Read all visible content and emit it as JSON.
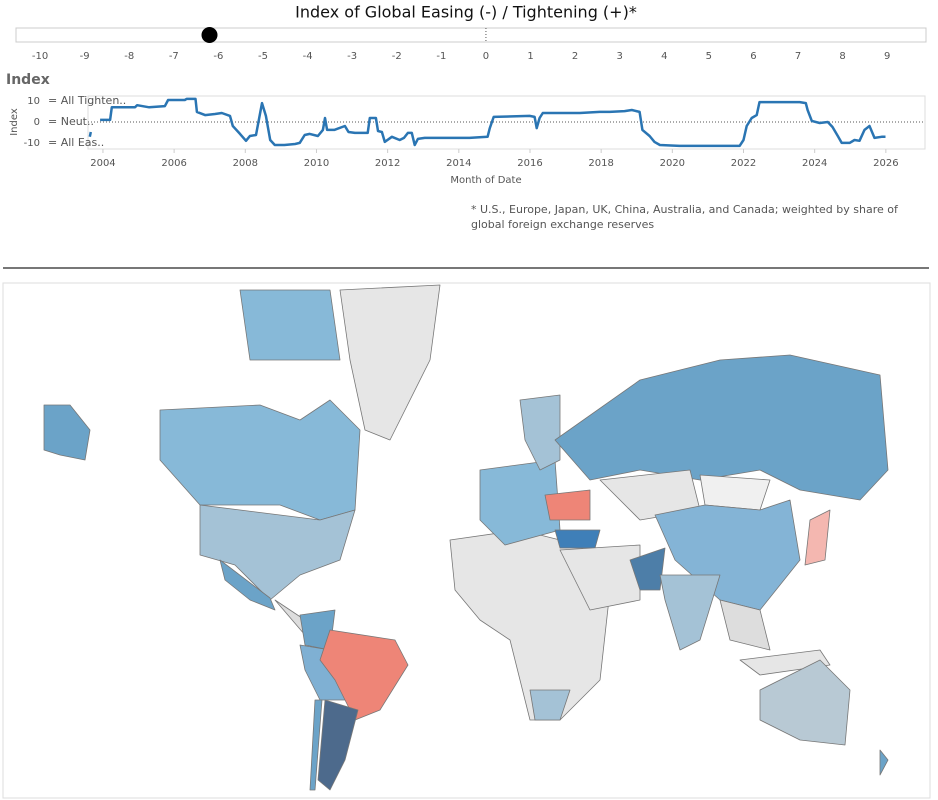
{
  "slider": {
    "title": "Index of Global Easing (-) / Tightening (+)*",
    "ticks": [
      -10,
      -9,
      -8,
      -7,
      -6,
      -5,
      -4,
      -3,
      -2,
      -1,
      0,
      1,
      2,
      3,
      4,
      5,
      6,
      7,
      8,
      9
    ],
    "xlim": [
      -10.54,
      9.87
    ],
    "value": -6.2
  },
  "chart_data": {
    "type": "line",
    "header": "Index",
    "y_label": "Index",
    "x_label": "Month of Date",
    "x": [
      2003.63,
      2003.66,
      2003.8,
      2003.92,
      2004.2,
      2004.25,
      2004.9,
      2004.96,
      2005.3,
      2005.74,
      2005.83,
      2006.3,
      2006.35,
      2006.6,
      2006.64,
      2006.87,
      2007.15,
      2007.34,
      2007.57,
      2007.65,
      2007.85,
      2008.02,
      2008.13,
      2008.3,
      2008.47,
      2008.58,
      2008.7,
      2008.83,
      2009.1,
      2009.4,
      2009.53,
      2009.67,
      2009.81,
      2010.04,
      2010.18,
      2010.24,
      2010.3,
      2010.5,
      2010.8,
      2010.9,
      2011.08,
      2011.44,
      2011.5,
      2011.67,
      2011.73,
      2011.84,
      2011.92,
      2012.12,
      2012.34,
      2012.46,
      2012.57,
      2012.68,
      2012.76,
      2012.85,
      2013.04,
      2014.3,
      2014.81,
      2014.87,
      2014.98,
      2015.99,
      2016.13,
      2016.19,
      2016.27,
      2016.36,
      2017.4,
      2017.96,
      2018.24,
      2018.66,
      2018.86,
      2019.08,
      2019.16,
      2019.36,
      2019.5,
      2019.65,
      2020.2,
      2020.77,
      2021.89,
      2022.0,
      2022.09,
      2022.23,
      2022.37,
      2022.45,
      2022.74,
      2023.58,
      2023.75,
      2023.8,
      2023.92,
      2024.14,
      2024.37,
      2024.5,
      2024.65,
      2024.76,
      2024.98,
      2025.12,
      2025.26,
      2025.4,
      2025.54,
      2025.68,
      2025.88,
      2025.99
    ],
    "series": [
      {
        "color": "#2a75b3",
        "values": [
          -7.1,
          -4.8,
          null,
          1,
          1,
          7,
          7,
          8,
          7,
          7.6,
          10.5,
          10.5,
          11,
          11,
          4.8,
          3.3,
          3.8,
          4.3,
          2.9,
          -1.9,
          -5.7,
          -9,
          -6.7,
          -6.2,
          9,
          2.9,
          -8.6,
          -11,
          -11,
          -10.5,
          -10,
          -6.2,
          -5.7,
          -6.7,
          -3.8,
          1.9,
          -3.8,
          -3.8,
          -1.9,
          -4.8,
          -5.2,
          -5.2,
          1.9,
          1.9,
          -4.3,
          -4.8,
          -9.5,
          -7.1,
          -8.6,
          -7.6,
          -5.2,
          -5.2,
          -11,
          -8.1,
          -7.6,
          -7.6,
          -7.1,
          -2.9,
          2.4,
          2.9,
          2.4,
          -2.9,
          1.9,
          4.3,
          4.3,
          4.8,
          4.8,
          5.2,
          5.7,
          4.8,
          -3.8,
          -6.7,
          -9.5,
          -11,
          -11.4,
          -11.4,
          -11.4,
          -8.6,
          -1.9,
          1.9,
          3.3,
          9.5,
          9.5,
          9.5,
          9,
          5.7,
          0.5,
          -0.5,
          0,
          -2.4,
          -6.7,
          -10,
          -10,
          -8.6,
          -9,
          -3.8,
          -1.9,
          -7.6,
          -7.1,
          -7.1
        ]
      }
    ],
    "xlim": [
      2003.58,
      2027.1
    ],
    "xticks": [
      2004,
      2006,
      2008,
      2010,
      2012,
      2014,
      2016,
      2018,
      2020,
      2022,
      2024,
      2026
    ],
    "ylim": [
      -12.9,
      12.4
    ],
    "yticks": [
      10,
      0,
      -10
    ],
    "ytick_captions": [
      "= All Tighten..",
      "= Neut..",
      "= All Eas.."
    ]
  },
  "note": [
    "* U.S., Europe, Japan, UK, China, Australia, and Canada;  weighted by share of",
    "global foreign exchange reserves"
  ]
}
